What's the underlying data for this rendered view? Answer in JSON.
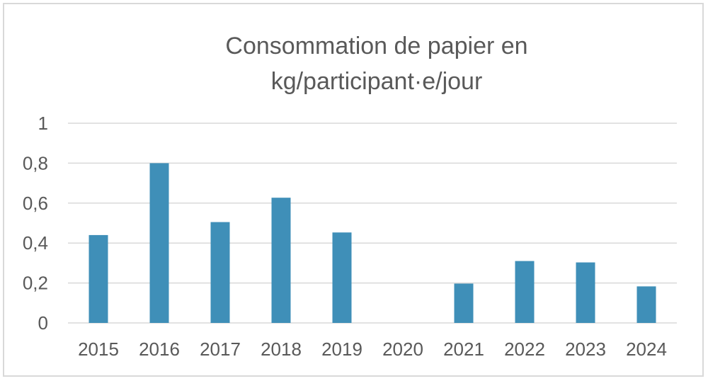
{
  "chart_data": {
    "type": "bar",
    "title_lines": [
      "Consommation de papier en",
      "kg/participant·e/jour"
    ],
    "categories": [
      "2015",
      "2016",
      "2017",
      "2018",
      "2019",
      "2020",
      "2021",
      "2022",
      "2023",
      "2024"
    ],
    "values": [
      0.44,
      0.8,
      0.505,
      0.627,
      0.453,
      0,
      0.197,
      0.31,
      0.303,
      0.183
    ],
    "ylim": [
      0,
      1
    ],
    "y_ticks": [
      0,
      0.2,
      0.4,
      0.6,
      0.8,
      1
    ],
    "y_tick_labels": [
      "0",
      "0,2",
      "0,4",
      "0,6",
      "0,8",
      "1"
    ],
    "grid": true,
    "legend": "none",
    "xlabel": "",
    "ylabel": ""
  },
  "colors": {
    "bar": "#3f8fb8",
    "grid": "#d9d9d9",
    "text": "#595959"
  }
}
